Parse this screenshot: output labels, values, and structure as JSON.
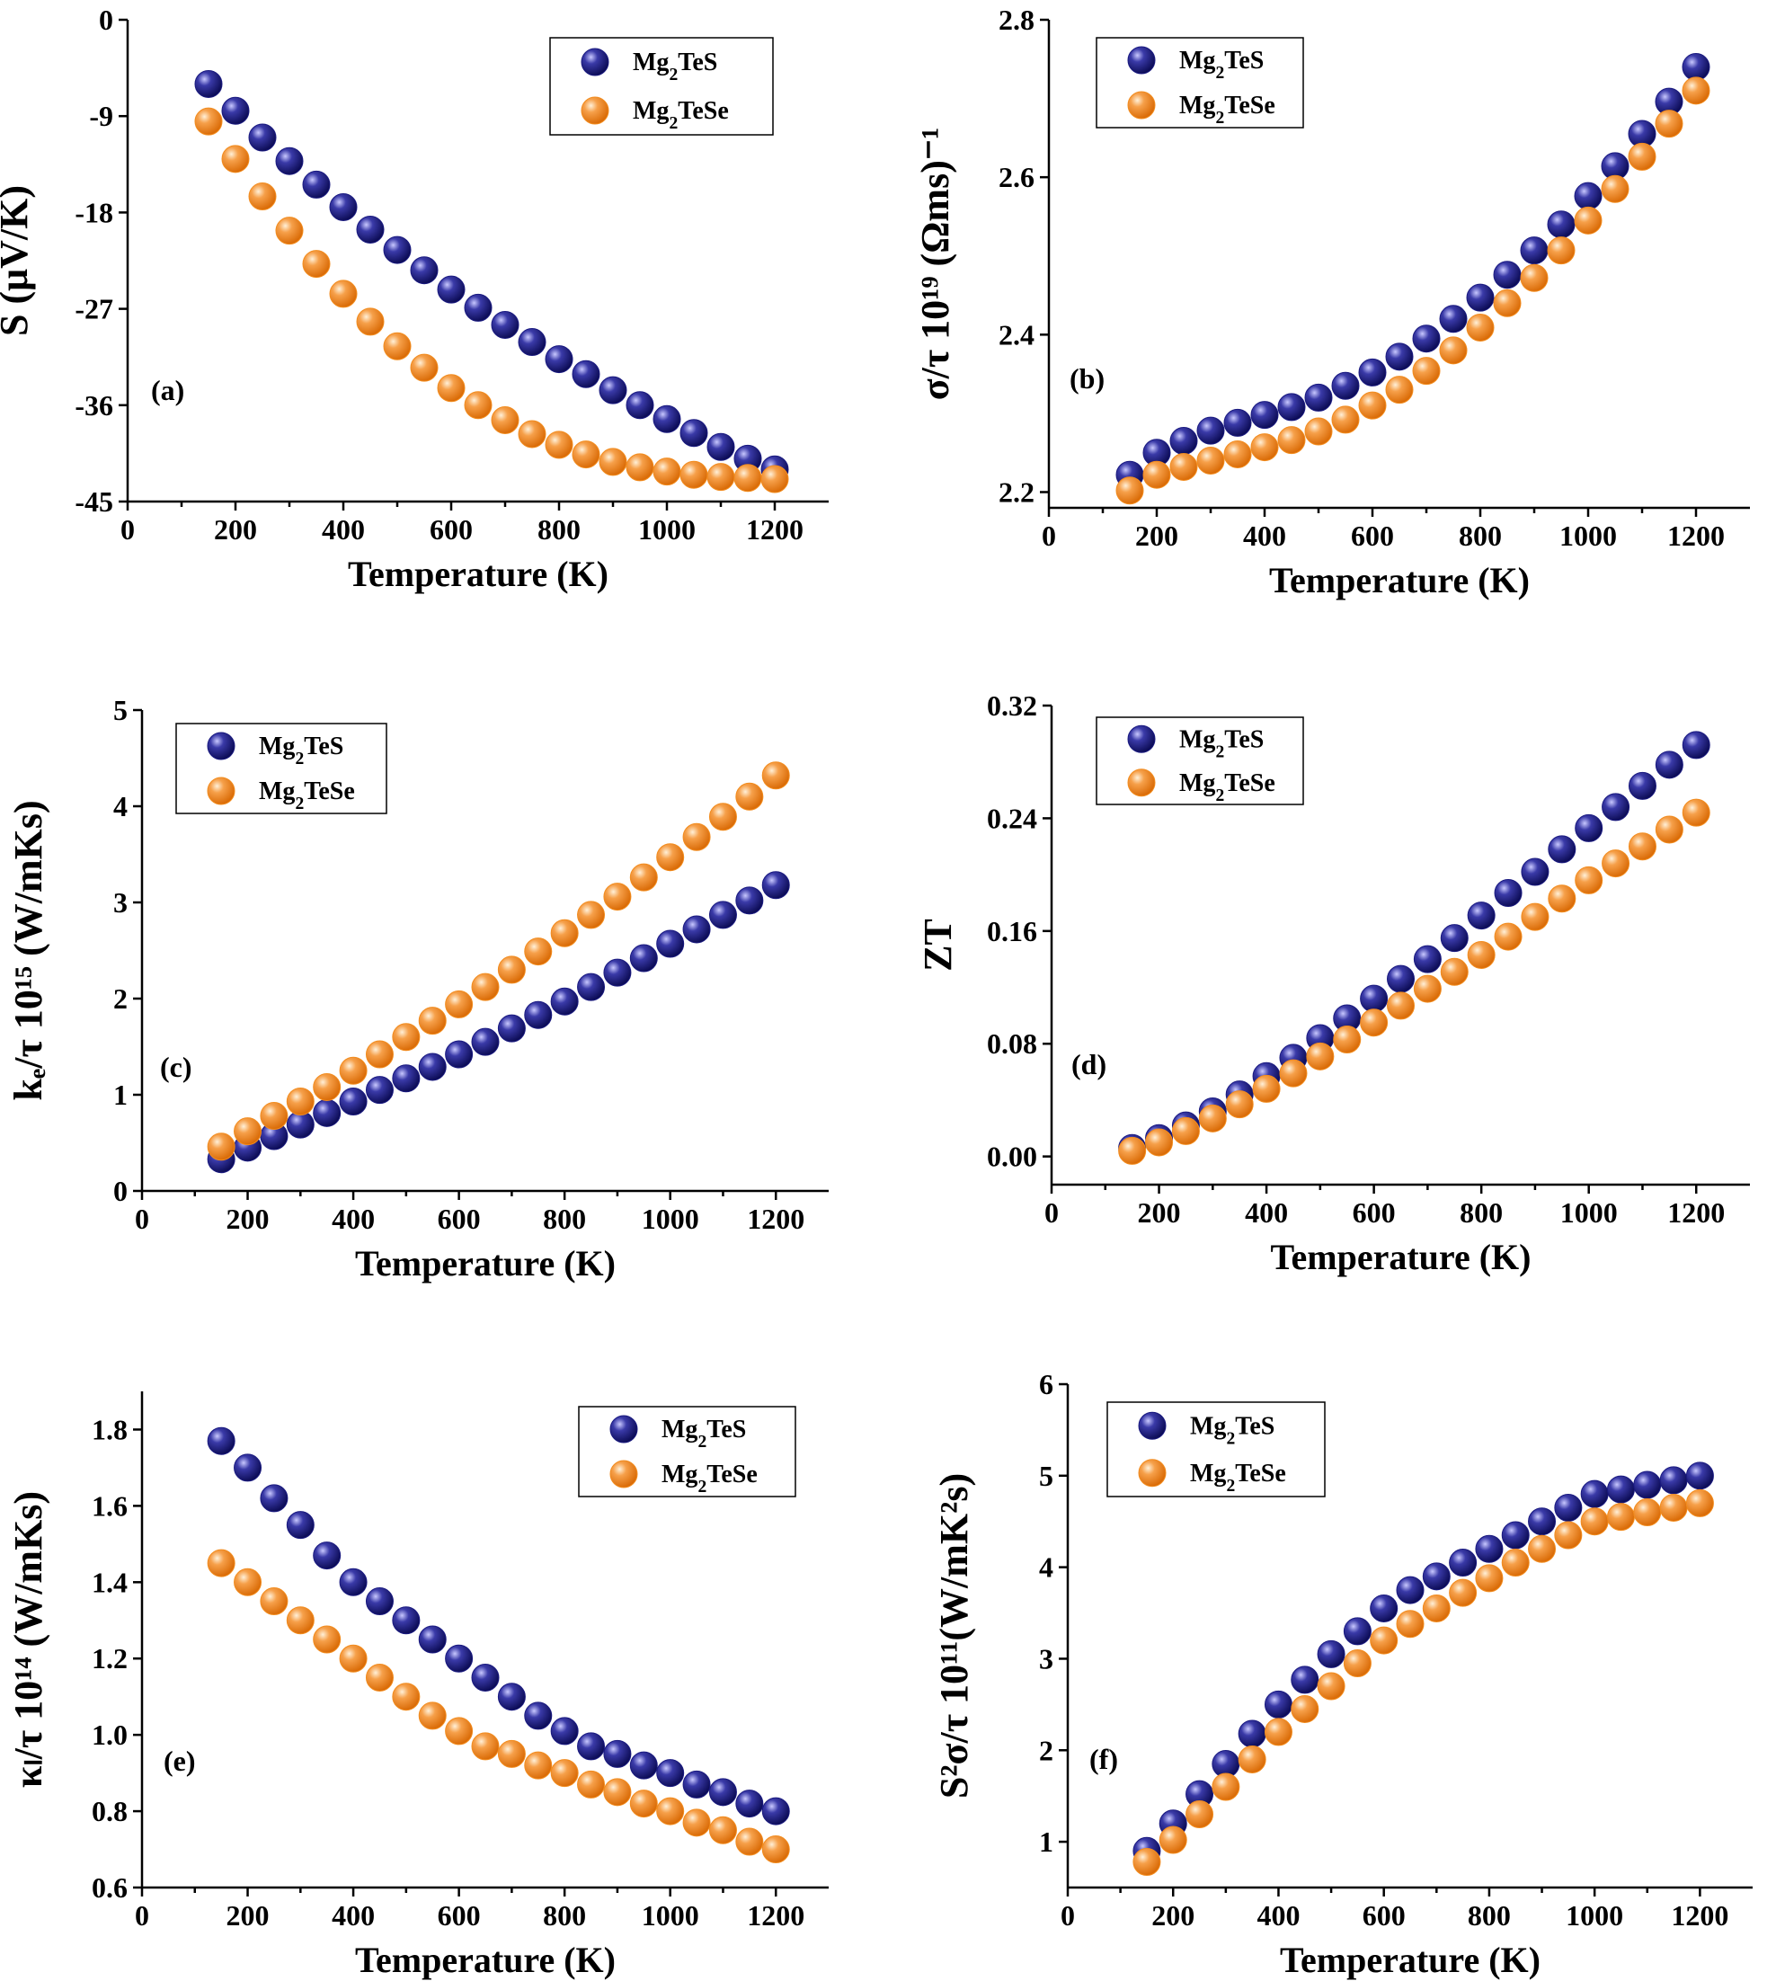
{
  "figure": {
    "xlabel": "Temperature (K)",
    "series_names": [
      "Mg2TeS",
      "Mg2TeSe"
    ],
    "colors": {
      "Mg2TeS": "#1a1a80",
      "Mg2TeSe": "#f28c1e"
    }
  },
  "chart_data": [
    {
      "panel": "(a)",
      "type": "scatter",
      "ylabel": "S (μV/K)",
      "xlabel": "Temperature (K)",
      "xlim": [
        0,
        1300
      ],
      "ylim": [
        -45,
        0
      ],
      "xticks": [
        0,
        200,
        400,
        600,
        800,
        1000,
        1200
      ],
      "yticks": [
        0,
        -9,
        -18,
        -27,
        -36,
        -45
      ],
      "x": [
        150,
        200,
        250,
        300,
        350,
        400,
        450,
        500,
        550,
        600,
        650,
        700,
        750,
        800,
        850,
        900,
        950,
        1000,
        1050,
        1100,
        1150,
        1200
      ],
      "series": [
        {
          "name": "Mg2TeS",
          "values": [
            -6.0,
            -8.5,
            -11.0,
            -13.2,
            -15.4,
            -17.5,
            -19.6,
            -21.5,
            -23.4,
            -25.2,
            -26.9,
            -28.5,
            -30.1,
            -31.7,
            -33.1,
            -34.6,
            -36.0,
            -37.3,
            -38.6,
            -39.9,
            -41.0,
            -42.0
          ]
        },
        {
          "name": "Mg2TeSe",
          "values": [
            -9.5,
            -13.0,
            -16.5,
            -19.7,
            -22.8,
            -25.6,
            -28.2,
            -30.5,
            -32.5,
            -34.4,
            -36.0,
            -37.4,
            -38.7,
            -39.7,
            -40.6,
            -41.3,
            -41.8,
            -42.2,
            -42.5,
            -42.7,
            -42.8,
            -42.9
          ]
        }
      ]
    },
    {
      "panel": "(b)",
      "type": "scatter",
      "ylabel": "σ/τ 10¹⁹ (Ωms)⁻¹",
      "xlabel": "Temperature (K)",
      "xlim": [
        0,
        1300
      ],
      "ylim": [
        2.18,
        2.8
      ],
      "xticks": [
        0,
        200,
        400,
        600,
        800,
        1000,
        1200
      ],
      "yticks": [
        2.2,
        2.4,
        2.6,
        2.8
      ],
      "x": [
        150,
        200,
        250,
        300,
        350,
        400,
        450,
        500,
        550,
        600,
        650,
        700,
        750,
        800,
        850,
        900,
        950,
        1000,
        1050,
        1100,
        1150,
        1200
      ],
      "series": [
        {
          "name": "Mg2TeS",
          "values": [
            2.222,
            2.25,
            2.265,
            2.278,
            2.288,
            2.298,
            2.308,
            2.32,
            2.335,
            2.352,
            2.372,
            2.395,
            2.42,
            2.447,
            2.476,
            2.507,
            2.54,
            2.576,
            2.614,
            2.655,
            2.696,
            2.74
          ]
        },
        {
          "name": "Mg2TeSe",
          "values": [
            2.202,
            2.222,
            2.232,
            2.24,
            2.248,
            2.257,
            2.266,
            2.277,
            2.292,
            2.31,
            2.33,
            2.354,
            2.38,
            2.409,
            2.44,
            2.472,
            2.507,
            2.545,
            2.585,
            2.626,
            2.668,
            2.71
          ]
        }
      ]
    },
    {
      "panel": "(c)",
      "type": "scatter",
      "ylabel": "kₑ/τ 10¹⁵ (W/mKs)",
      "xlabel": "Temperature (K)",
      "xlim": [
        0,
        1300
      ],
      "ylim": [
        0,
        5
      ],
      "xticks": [
        0,
        200,
        400,
        600,
        800,
        1000,
        1200
      ],
      "yticks": [
        0,
        1,
        2,
        3,
        4,
        5
      ],
      "x": [
        150,
        200,
        250,
        300,
        350,
        400,
        450,
        500,
        550,
        600,
        650,
        700,
        750,
        800,
        850,
        900,
        950,
        1000,
        1050,
        1100,
        1150,
        1200
      ],
      "series": [
        {
          "name": "Mg2TeS",
          "values": [
            0.33,
            0.45,
            0.57,
            0.69,
            0.81,
            0.93,
            1.05,
            1.17,
            1.29,
            1.42,
            1.55,
            1.69,
            1.83,
            1.97,
            2.12,
            2.27,
            2.42,
            2.57,
            2.72,
            2.87,
            3.02,
            3.18
          ]
        },
        {
          "name": "Mg2TeSe",
          "values": [
            0.46,
            0.62,
            0.78,
            0.93,
            1.08,
            1.25,
            1.42,
            1.6,
            1.77,
            1.94,
            2.12,
            2.3,
            2.49,
            2.68,
            2.87,
            3.06,
            3.26,
            3.47,
            3.68,
            3.89,
            4.1,
            4.32
          ]
        }
      ]
    },
    {
      "panel": "(d)",
      "type": "scatter",
      "ylabel": "ZT",
      "xlabel": "Temperature (K)",
      "xlim": [
        0,
        1300
      ],
      "ylim": [
        -0.02,
        0.32
      ],
      "xticks": [
        0,
        200,
        400,
        600,
        800,
        1000,
        1200
      ],
      "yticks": [
        0.0,
        0.08,
        0.16,
        0.24,
        0.32
      ],
      "ytick_labels": [
        "0.00",
        "0.08",
        "0.16",
        "0.24",
        "0.32"
      ],
      "x": [
        150,
        200,
        250,
        300,
        350,
        400,
        450,
        500,
        550,
        600,
        650,
        700,
        750,
        800,
        850,
        900,
        950,
        1000,
        1050,
        1100,
        1150,
        1200
      ],
      "series": [
        {
          "name": "Mg2TeS",
          "values": [
            0.006,
            0.013,
            0.022,
            0.032,
            0.044,
            0.057,
            0.07,
            0.084,
            0.098,
            0.112,
            0.126,
            0.14,
            0.155,
            0.171,
            0.187,
            0.202,
            0.218,
            0.233,
            0.248,
            0.263,
            0.278,
            0.292
          ]
        },
        {
          "name": "Mg2TeSe",
          "values": [
            0.004,
            0.01,
            0.018,
            0.027,
            0.037,
            0.048,
            0.059,
            0.071,
            0.083,
            0.095,
            0.107,
            0.119,
            0.131,
            0.143,
            0.156,
            0.17,
            0.183,
            0.196,
            0.208,
            0.22,
            0.232,
            0.244
          ]
        }
      ]
    },
    {
      "panel": "(e)",
      "type": "scatter",
      "ylabel": "κₗ/τ 10¹⁴ (W/mKs)",
      "xlabel": "Temperature (K)",
      "xlim": [
        0,
        1300
      ],
      "ylim": [
        0.6,
        1.9
      ],
      "xticks": [
        0,
        200,
        400,
        600,
        800,
        1000,
        1200
      ],
      "yticks": [
        0.6,
        0.8,
        1.0,
        1.2,
        1.4,
        1.6,
        1.8
      ],
      "ytick_labels": [
        "0.6",
        "0.8",
        "1.0",
        "1.2",
        "1.4",
        "1.6",
        "1.8"
      ],
      "x": [
        150,
        200,
        250,
        300,
        350,
        400,
        450,
        500,
        550,
        600,
        650,
        700,
        750,
        800,
        850,
        900,
        950,
        1000,
        1050,
        1100,
        1150,
        1200
      ],
      "series": [
        {
          "name": "Mg2TeS",
          "values": [
            1.77,
            1.7,
            1.62,
            1.55,
            1.47,
            1.4,
            1.35,
            1.3,
            1.25,
            1.2,
            1.15,
            1.1,
            1.05,
            1.01,
            0.97,
            0.95,
            0.92,
            0.9,
            0.87,
            0.85,
            0.82,
            0.8
          ]
        },
        {
          "name": "Mg2TeSe",
          "values": [
            1.45,
            1.4,
            1.35,
            1.3,
            1.25,
            1.2,
            1.15,
            1.1,
            1.05,
            1.01,
            0.97,
            0.95,
            0.92,
            0.9,
            0.87,
            0.85,
            0.82,
            0.8,
            0.77,
            0.75,
            0.72,
            0.7
          ]
        }
      ]
    },
    {
      "panel": "(f)",
      "type": "scatter",
      "ylabel": "S²σ/τ 10¹¹(W/mK²s)",
      "xlabel": "Temperature (K)",
      "xlim": [
        0,
        1300
      ],
      "ylim": [
        0.5,
        6
      ],
      "xticks": [
        0,
        200,
        400,
        600,
        800,
        1000,
        1200
      ],
      "yticks": [
        1,
        2,
        3,
        4,
        5,
        6
      ],
      "x": [
        150,
        200,
        250,
        300,
        350,
        400,
        450,
        500,
        550,
        600,
        650,
        700,
        750,
        800,
        850,
        900,
        950,
        1000,
        1050,
        1100,
        1150,
        1200
      ],
      "series": [
        {
          "name": "Mg2TeS",
          "values": [
            0.9,
            1.2,
            1.52,
            1.85,
            2.18,
            2.5,
            2.77,
            3.05,
            3.3,
            3.55,
            3.75,
            3.9,
            4.05,
            4.2,
            4.35,
            4.5,
            4.65,
            4.8,
            4.85,
            4.9,
            4.95,
            5.0
          ]
        },
        {
          "name": "Mg2TeSe",
          "values": [
            0.78,
            1.02,
            1.3,
            1.6,
            1.9,
            2.2,
            2.45,
            2.7,
            2.95,
            3.2,
            3.38,
            3.55,
            3.72,
            3.88,
            4.05,
            4.2,
            4.35,
            4.5,
            4.55,
            4.6,
            4.65,
            4.7
          ]
        }
      ]
    }
  ]
}
